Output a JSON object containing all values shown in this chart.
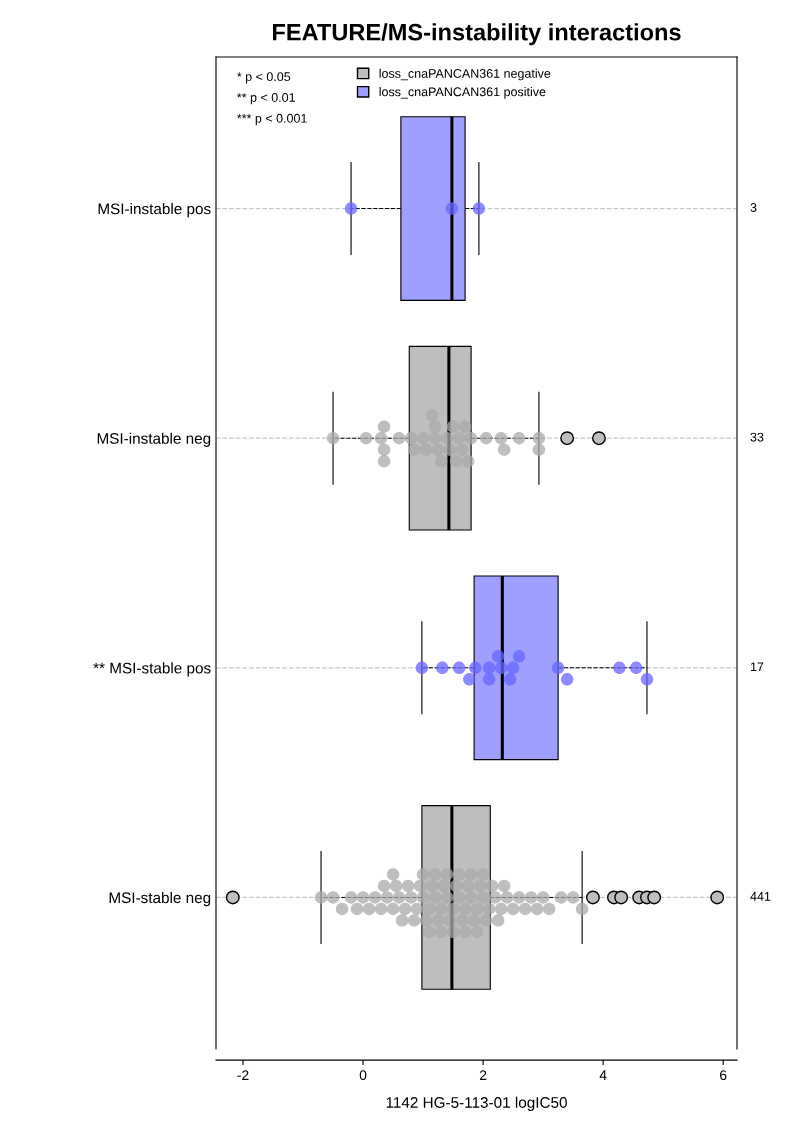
{
  "chart_data": {
    "type": "box",
    "orientation": "horizontal",
    "title": "FEATURE/MS-instability interactions",
    "xlabel": "1142 HG-5-113-01 logIC50",
    "categories": [
      "MSI-instable pos",
      "MSI-instable neg",
      "** MSI-stable pos",
      "MSI-stable neg"
    ],
    "xlim": [
      -2.45,
      6.23
    ],
    "xticks": [
      -2,
      0,
      2,
      4,
      6
    ],
    "grid": "y",
    "legend": "top",
    "marker": "circle",
    "annotations": [
      "* p < 0.05",
      "** p < 0.01",
      "*** p < 0.001",
      "3",
      "33",
      "17",
      "441"
    ],
    "series": [
      {
        "name": "loss_cnaPANCAN361 negative",
        "color": "#bebebe",
        "boxes": [
          null,
          {
            "low": -0.5,
            "q1": 0.77,
            "median": 1.43,
            "q3": 1.8,
            "high": 2.93,
            "outliers": [
              3.4,
              3.93
            ]
          },
          null,
          {
            "low": -0.7,
            "q1": 0.98,
            "median": 1.48,
            "q3": 2.12,
            "high": 3.65,
            "outliers": [
              -2.17,
              3.83,
              4.18,
              4.3,
              4.6,
              4.73,
              4.85,
              5.9
            ]
          }
        ]
      },
      {
        "name": "loss_cnaPANCAN361 positive",
        "color": "#9f9fff",
        "boxes": [
          {
            "low": -0.2,
            "q1": 0.63,
            "median": 1.48,
            "q3": 1.7,
            "high": 1.93
          },
          null,
          {
            "low": 0.98,
            "q1": 1.85,
            "median": 2.32,
            "q3": 3.25,
            "high": 4.73
          },
          null
        ]
      },
      {
        "type": "scatter",
        "color": "#6666ff",
        "x": [
          "MSI-instable pos",
          "MSI-instable pos",
          "MSI-instable pos"
        ],
        "values": [
          -0.2,
          1.48,
          1.93
        ]
      },
      {
        "type": "scatter",
        "color": "#a9a9a9",
        "x": [
          "MSI-instable neg",
          "MSI-instable neg",
          "MSI-instable neg",
          "MSI-instable neg",
          "MSI-instable neg",
          "MSI-instable neg",
          "MSI-instable neg",
          "MSI-instable neg",
          "MSI-instable neg",
          "MSI-instable neg",
          "MSI-instable neg",
          "MSI-instable neg",
          "MSI-instable neg",
          "MSI-instable neg",
          "MSI-instable neg",
          "MSI-instable neg",
          "MSI-instable neg",
          "MSI-instable neg",
          "MSI-instable neg",
          "MSI-instable neg",
          "MSI-instable neg",
          "MSI-instable neg",
          "MSI-instable neg",
          "MSI-instable neg",
          "MSI-instable neg",
          "MSI-instable neg",
          "MSI-instable neg",
          "MSI-instable neg",
          "MSI-instable neg",
          "MSI-instable neg",
          "MSI-instable neg"
        ],
        "values": [
          -0.5,
          0.05,
          0.3,
          0.35,
          0.35,
          0.35,
          0.6,
          0.8,
          0.85,
          1.0,
          1.05,
          1.2,
          1.2,
          1.25,
          1.3,
          1.4,
          1.45,
          1.5,
          1.55,
          1.6,
          1.65,
          1.7,
          1.75,
          1.8,
          2.05,
          2.3,
          2.35,
          2.6,
          2.93,
          2.93,
          1.15
        ]
      },
      {
        "type": "scatter",
        "color": "#6666ff",
        "x": [
          "** MSI-stable pos",
          "** MSI-stable pos",
          "** MSI-stable pos",
          "** MSI-stable pos",
          "** MSI-stable pos",
          "** MSI-stable pos",
          "** MSI-stable pos",
          "** MSI-stable pos",
          "** MSI-stable pos",
          "** MSI-stable pos",
          "** MSI-stable pos",
          "** MSI-stable pos",
          "** MSI-stable pos",
          "** MSI-stable pos",
          "** MSI-stable pos",
          "** MSI-stable pos",
          "** MSI-stable pos"
        ],
        "values": [
          0.98,
          1.32,
          1.6,
          1.77,
          1.87,
          2.1,
          2.1,
          2.25,
          2.3,
          2.45,
          2.5,
          2.6,
          3.25,
          3.4,
          4.27,
          4.55,
          4.73
        ]
      },
      {
        "type": "scatter",
        "color": "#a9a9a9",
        "x": [
          "MSI-stable neg",
          "MSI-stable neg",
          "MSI-stable neg",
          "MSI-stable neg",
          "MSI-stable neg",
          "MSI-stable neg",
          "MSI-stable neg",
          "MSI-stable neg",
          "MSI-stable neg",
          "MSI-stable neg",
          "MSI-stable neg",
          "MSI-stable neg",
          "MSI-stable neg",
          "MSI-stable neg",
          "MSI-stable neg",
          "MSI-stable neg",
          "MSI-stable neg",
          "MSI-stable neg",
          "MSI-stable neg",
          "MSI-stable neg",
          "MSI-stable neg",
          "MSI-stable neg",
          "MSI-stable neg",
          "MSI-stable neg",
          "MSI-stable neg",
          "MSI-stable neg",
          "MSI-stable neg",
          "MSI-stable neg",
          "MSI-stable neg",
          "MSI-stable neg",
          "MSI-stable neg",
          "MSI-stable neg",
          "MSI-stable neg",
          "MSI-stable neg",
          "MSI-stable neg",
          "MSI-stable neg",
          "MSI-stable neg",
          "MSI-stable neg",
          "MSI-stable neg",
          "MSI-stable neg",
          "MSI-stable neg",
          "MSI-stable neg",
          "MSI-stable neg",
          "MSI-stable neg",
          "MSI-stable neg",
          "MSI-stable neg",
          "MSI-stable neg",
          "MSI-stable neg",
          "MSI-stable neg",
          "MSI-stable neg",
          "MSI-stable neg",
          "MSI-stable neg",
          "MSI-stable neg",
          "MSI-stable neg",
          "MSI-stable neg",
          "MSI-stable neg",
          "MSI-stable neg",
          "MSI-stable neg",
          "MSI-stable neg",
          "MSI-stable neg",
          "MSI-stable neg",
          "MSI-stable neg",
          "MSI-stable neg",
          "MSI-stable neg",
          "MSI-stable neg",
          "MSI-stable neg",
          "MSI-stable neg",
          "MSI-stable neg",
          "MSI-stable neg",
          "MSI-stable neg",
          "MSI-stable neg",
          "MSI-stable neg"
        ],
        "values": [
          -0.7,
          -0.5,
          -0.35,
          -0.2,
          -0.1,
          0.0,
          0.1,
          0.2,
          0.3,
          0.35,
          0.4,
          0.5,
          0.55,
          0.6,
          0.65,
          0.7,
          0.75,
          0.8,
          0.85,
          0.9,
          0.95,
          1.0,
          1.05,
          1.1,
          1.15,
          1.2,
          1.25,
          1.3,
          1.35,
          1.4,
          1.45,
          1.5,
          1.55,
          1.6,
          1.65,
          1.7,
          1.75,
          1.8,
          1.85,
          1.9,
          1.95,
          2.0,
          2.05,
          2.1,
          2.15,
          2.2,
          2.25,
          2.3,
          2.35,
          2.4,
          2.5,
          2.6,
          2.7,
          2.8,
          2.9,
          3.0,
          3.1,
          3.3,
          3.5,
          3.65,
          1.0,
          1.1,
          1.2,
          1.3,
          1.4,
          1.5,
          1.6,
          1.7,
          1.8,
          1.9,
          2.0,
          0.5
        ]
      }
    ]
  }
}
